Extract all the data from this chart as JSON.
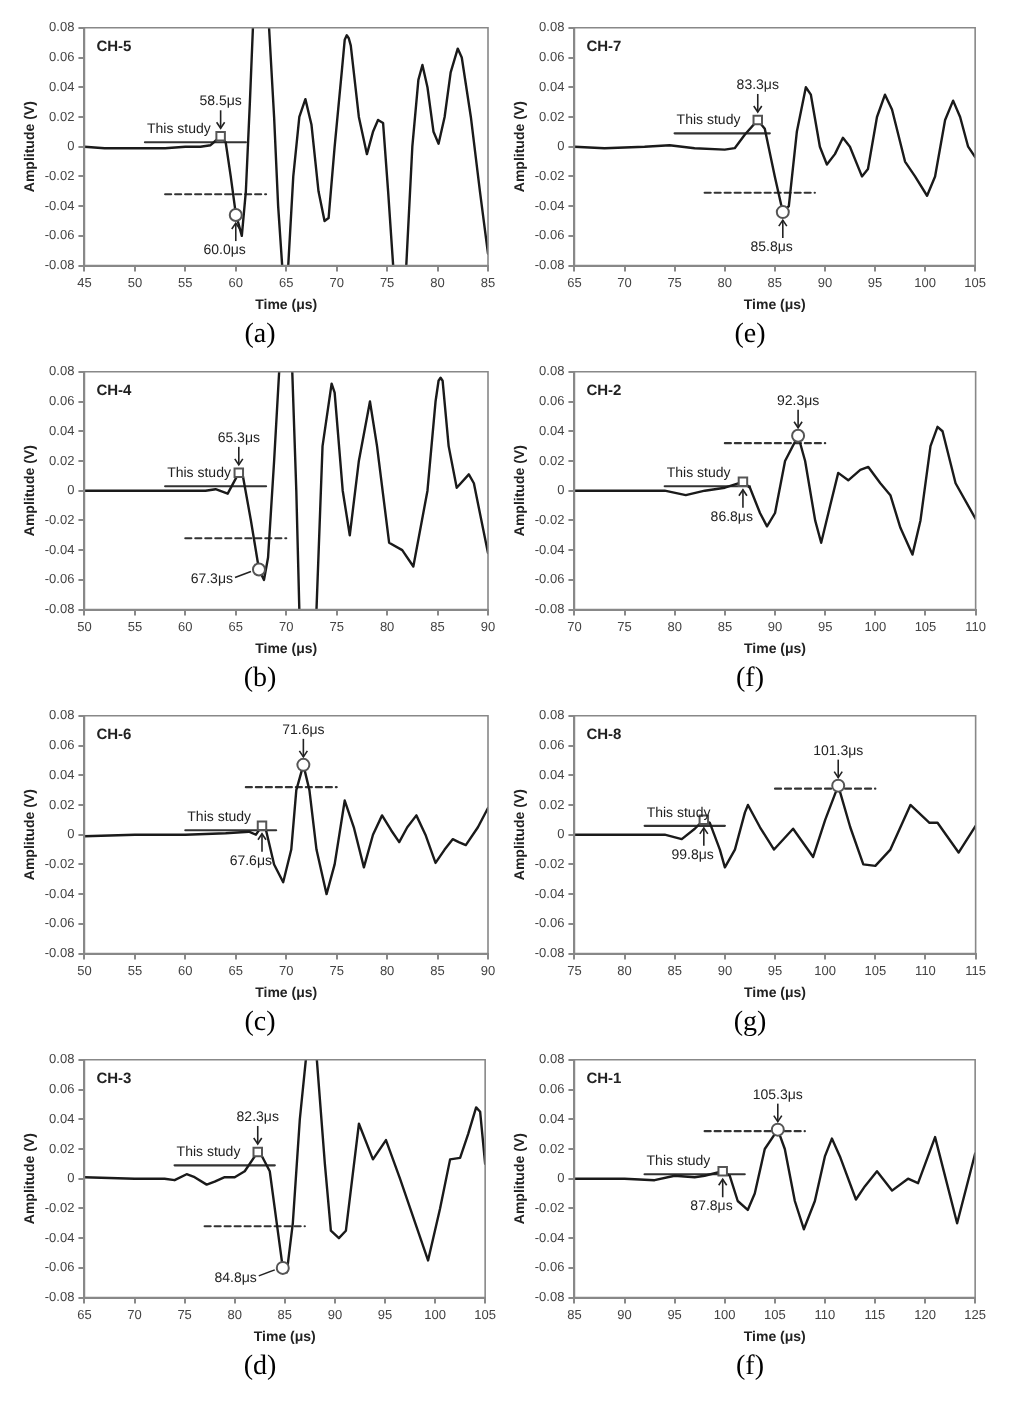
{
  "chart_data": [
    {
      "type": "line",
      "title": "CH-5",
      "xlabel": "Time (μs)",
      "ylabel": "Amplitude (V)",
      "xlim": [
        45,
        85
      ],
      "xticks": [
        45,
        50,
        55,
        60,
        65,
        70,
        75,
        80,
        85
      ],
      "ylim": [
        -0.08,
        0.08
      ],
      "yticks": [
        -0.08,
        -0.06,
        -0.04,
        -0.02,
        0,
        0.02,
        0.04,
        0.06,
        0.08
      ],
      "series": [
        {
          "color": "#1a1a1a",
          "x": [
            45,
            47,
            50,
            53,
            55,
            56.5,
            57.5,
            58,
            58.5,
            59,
            59.5,
            60,
            60.6,
            61,
            61.4,
            61.7,
            62.5,
            63.3,
            63.8,
            64.2,
            64.6,
            64.9,
            65.2,
            65.7,
            66.3,
            66.9,
            67.5,
            68.2,
            68.8,
            69.2,
            69.8,
            70.5,
            70.8,
            71,
            71.2,
            71.4,
            72.2,
            73,
            73.6,
            74.1,
            74.6,
            75.1,
            75.6,
            76.2,
            76.9,
            77.5,
            78.1,
            78.5,
            79,
            79.6,
            80.1,
            80.7,
            81.3,
            82,
            82.4,
            83.3,
            84.2,
            85
          ],
          "values": [
            0,
            -0.001,
            -0.001,
            -0.001,
            0,
            0,
            0.001,
            0.004,
            0.007,
            0.003,
            -0.02,
            -0.045,
            -0.06,
            -0.03,
            0.03,
            0.08,
            null,
            0.08,
            0.02,
            -0.04,
            -0.08,
            null,
            -0.08,
            -0.02,
            0.02,
            0.032,
            0.015,
            -0.03,
            -0.05,
            -0.048,
            0,
            0.05,
            0.072,
            0.075,
            0.073,
            0.068,
            0.02,
            -0.005,
            0.01,
            0.018,
            0.016,
            -0.03,
            -0.08,
            null,
            -0.08,
            0,
            0.045,
            0.055,
            0.04,
            0.01,
            0.002,
            0.02,
            0.05,
            0.066,
            0.06,
            0.02,
            -0.03,
            -0.072
          ]
        },
        {
          "name": "This study",
          "color": "#333333",
          "line_style": "solid",
          "x": [
            51,
            61
          ],
          "values": [
            0.003,
            0.003
          ]
        },
        {
          "color": "#333333",
          "line_style": "dashed",
          "x": [
            53,
            63
          ],
          "values": [
            -0.032,
            -0.032
          ]
        },
        {
          "type": "scatter",
          "marker": "square",
          "color": "#555555",
          "x": [
            58.5
          ],
          "values": [
            0.007
          ]
        },
        {
          "type": "scatter",
          "marker": "circle",
          "color": "#555555",
          "x": [
            60
          ],
          "values": [
            -0.046
          ]
        }
      ],
      "annotations": [
        {
          "text": "58.5μs",
          "x": 58.5,
          "y": 0.007
        },
        {
          "text": "60.0μs",
          "x": 60,
          "y": -0.046
        },
        "(a)"
      ]
    },
    {
      "type": "line",
      "title": "CH-7",
      "xlabel": "Time (μs)",
      "ylabel": "Amplitude (V)",
      "xlim": [
        65,
        105
      ],
      "xticks": [
        65,
        70,
        75,
        80,
        85,
        90,
        95,
        100,
        105
      ],
      "ylim": [
        -0.08,
        0.08
      ],
      "yticks": [
        -0.08,
        -0.06,
        -0.04,
        -0.02,
        0,
        0.02,
        0.04,
        0.06,
        0.08
      ],
      "series": [
        {
          "color": "#1a1a1a",
          "x": [
            65,
            68,
            72,
            74.5,
            77,
            80,
            81,
            82,
            83.3,
            84,
            85,
            85.8,
            86.4,
            87.2,
            88.1,
            88.6,
            89.5,
            90.2,
            91,
            91.8,
            92.5,
            93.7,
            94.3,
            95.2,
            96,
            96.7,
            98,
            99,
            100.2,
            101,
            102,
            102.8,
            103.5,
            104.3,
            105
          ],
          "values": [
            0,
            -0.001,
            0,
            0.001,
            -0.001,
            -0.002,
            -0.001,
            0.008,
            0.018,
            0.012,
            -0.02,
            -0.044,
            -0.04,
            0.01,
            0.04,
            0.035,
            0,
            -0.012,
            -0.005,
            0.006,
            0,
            -0.02,
            -0.015,
            0.02,
            0.035,
            0.025,
            -0.01,
            -0.02,
            -0.033,
            -0.02,
            0.018,
            0.031,
            0.02,
            0,
            -0.007
          ]
        },
        {
          "name": "This study",
          "color": "#333333",
          "line_style": "solid",
          "x": [
            75,
            84.5
          ],
          "values": [
            0.009,
            0.009
          ]
        },
        {
          "color": "#333333",
          "line_style": "dashed",
          "x": [
            78,
            89
          ],
          "values": [
            -0.031,
            -0.031
          ]
        },
        {
          "type": "scatter",
          "marker": "square",
          "color": "#555555",
          "x": [
            83.3
          ],
          "values": [
            0.018
          ]
        },
        {
          "type": "scatter",
          "marker": "circle",
          "color": "#555555",
          "x": [
            85.8
          ],
          "values": [
            -0.044
          ]
        }
      ],
      "annotations": [
        {
          "text": "83.3μs",
          "x": 83.3,
          "y": 0.018
        },
        {
          "text": "85.8μs",
          "x": 85.8,
          "y": -0.044
        },
        "(e)"
      ]
    },
    {
      "type": "line",
      "title": "CH-4",
      "xlabel": "Time (μs)",
      "ylabel": "Amplitude (V)",
      "xlim": [
        50,
        90
      ],
      "xticks": [
        50,
        55,
        60,
        65,
        70,
        75,
        80,
        85,
        90
      ],
      "ylim": [
        -0.08,
        0.08
      ],
      "yticks": [
        -0.08,
        -0.06,
        -0.04,
        -0.02,
        0,
        0.02,
        0.04,
        0.06,
        0.08
      ],
      "series": [
        {
          "color": "#1a1a1a",
          "x": [
            50,
            55,
            60,
            62,
            63,
            64.2,
            65.3,
            65.7,
            66.5,
            67.3,
            67.8,
            68.2,
            68.8,
            69.3,
            70,
            70.6,
            71,
            71.3,
            72.2,
            73,
            73.6,
            74.5,
            74.8,
            75.6,
            76.3,
            77.2,
            78.3,
            79,
            80.2,
            81.5,
            82.6,
            84,
            84.8,
            85.1,
            85.3,
            85.5,
            86.1,
            86.9,
            88.1,
            88.6,
            90
          ],
          "values": [
            0,
            0,
            0,
            0,
            0.001,
            -0.002,
            0.012,
            0.01,
            -0.02,
            -0.053,
            -0.06,
            -0.045,
            0.02,
            0.08,
            null,
            0.08,
            0,
            -0.08,
            null,
            -0.08,
            0.03,
            0.072,
            0.066,
            0,
            -0.03,
            0.02,
            0.06,
            0.03,
            -0.035,
            -0.04,
            -0.051,
            0,
            0.06,
            0.074,
            0.076,
            0.074,
            0.03,
            0.002,
            0.011,
            0.005,
            -0.042
          ]
        },
        {
          "name": "This study",
          "color": "#333333",
          "line_style": "solid",
          "x": [
            58,
            68
          ],
          "values": [
            0.003,
            0.003
          ]
        },
        {
          "color": "#333333",
          "line_style": "dashed",
          "x": [
            60,
            70
          ],
          "values": [
            -0.032,
            -0.032
          ]
        },
        {
          "type": "scatter",
          "marker": "square",
          "color": "#555555",
          "x": [
            65.3
          ],
          "values": [
            0.012
          ]
        },
        {
          "type": "scatter",
          "marker": "circle",
          "color": "#555555",
          "x": [
            67.3
          ],
          "values": [
            -0.053
          ]
        }
      ],
      "annotations": [
        {
          "text": "65.3μs",
          "x": 65.3,
          "y": 0.012
        },
        {
          "text": "67.3μs",
          "x": 67.3,
          "y": -0.053
        },
        "(b)"
      ]
    },
    {
      "type": "line",
      "title": "CH-2",
      "xlabel": "Time (μs)",
      "ylabel": "Amplitude (V)",
      "xlim": [
        70,
        110
      ],
      "xticks": [
        70,
        75,
        80,
        85,
        90,
        95,
        100,
        105,
        110
      ],
      "ylim": [
        -0.08,
        0.08
      ],
      "yticks": [
        -0.08,
        -0.06,
        -0.04,
        -0.02,
        0,
        0.02,
        0.04,
        0.06,
        0.08
      ],
      "series": [
        {
          "color": "#1a1a1a",
          "x": [
            70,
            75,
            79,
            81.1,
            83,
            85,
            86.8,
            87.5,
            88.5,
            89.2,
            90,
            91,
            92.3,
            93,
            94,
            94.6,
            95.5,
            96.3,
            97.3,
            98.5,
            99.3,
            100.5,
            101.5,
            102.5,
            103.7,
            104.5,
            105.5,
            106.2,
            106.7,
            108,
            110
          ],
          "values": [
            0,
            0,
            0,
            -0.003,
            0,
            0.002,
            0.006,
            0.002,
            -0.015,
            -0.024,
            -0.015,
            0.02,
            0.037,
            0.02,
            -0.02,
            -0.035,
            -0.01,
            0.012,
            0.007,
            0.014,
            0.016,
            0.005,
            -0.003,
            -0.025,
            -0.043,
            -0.02,
            0.03,
            0.043,
            0.04,
            0.005,
            -0.019
          ]
        },
        {
          "name": "This study",
          "color": "#333333",
          "line_style": "solid",
          "x": [
            79,
            87.5
          ],
          "values": [
            0.003,
            0.003
          ]
        },
        {
          "color": "#333333",
          "line_style": "dashed",
          "x": [
            85,
            95
          ],
          "values": [
            0.032,
            0.032
          ]
        },
        {
          "type": "scatter",
          "marker": "square",
          "color": "#555555",
          "x": [
            86.8
          ],
          "values": [
            0.006
          ]
        },
        {
          "type": "scatter",
          "marker": "circle",
          "color": "#555555",
          "x": [
            92.3
          ],
          "values": [
            0.037
          ]
        }
      ],
      "annotations": [
        {
          "text": "92.3μs",
          "x": 92.3,
          "y": 0.037
        },
        {
          "text": "86.8μs",
          "x": 86.8,
          "y": 0.006
        },
        "(f)"
      ]
    },
    {
      "type": "line",
      "title": "CH-6",
      "xlabel": "Time (μs)",
      "ylabel": "Amplitude (V)",
      "xlim": [
        50,
        90
      ],
      "xticks": [
        50,
        55,
        60,
        65,
        70,
        75,
        80,
        85,
        90
      ],
      "ylim": [
        -0.08,
        0.08
      ],
      "yticks": [
        -0.08,
        -0.06,
        -0.04,
        -0.02,
        0,
        0.02,
        0.04,
        0.06,
        0.08
      ],
      "series": [
        {
          "color": "#1a1a1a",
          "x": [
            50,
            55,
            60,
            64,
            66.3,
            67,
            67.6,
            68,
            68.8,
            69.7,
            70.5,
            71,
            71.7,
            72.3,
            73,
            74,
            74.8,
            75.8,
            76.7,
            77.7,
            78.6,
            79.5,
            80.4,
            81.2,
            82,
            82.9,
            83.8,
            84.8,
            85.7,
            86.5,
            87.1,
            87.8,
            89,
            90
          ],
          "values": [
            -0.001,
            0,
            0,
            0.001,
            0.002,
            0,
            0.006,
            0.003,
            -0.02,
            -0.032,
            -0.01,
            0.03,
            0.047,
            0.03,
            -0.01,
            -0.04,
            -0.02,
            0.023,
            0.005,
            -0.022,
            0,
            0.013,
            0.003,
            -0.005,
            0.005,
            0.013,
            0,
            -0.019,
            -0.01,
            -0.003,
            -0.005,
            -0.007,
            0.005,
            0.018
          ]
        },
        {
          "name": "This study",
          "color": "#333333",
          "line_style": "solid",
          "x": [
            60,
            69
          ],
          "values": [
            0.003,
            0.003
          ]
        },
        {
          "color": "#333333",
          "line_style": "dashed",
          "x": [
            66,
            75
          ],
          "values": [
            0.032,
            0.032
          ]
        },
        {
          "type": "scatter",
          "marker": "square",
          "color": "#555555",
          "x": [
            67.6
          ],
          "values": [
            0.006
          ]
        },
        {
          "type": "scatter",
          "marker": "circle",
          "color": "#555555",
          "x": [
            71.7
          ],
          "values": [
            0.047
          ]
        }
      ],
      "annotations": [
        {
          "text": "71.6μs",
          "x": 71.7,
          "y": 0.047
        },
        {
          "text": "67.6μs",
          "x": 67.6,
          "y": 0.006
        },
        "(c)"
      ]
    },
    {
      "type": "line",
      "title": "CH-8",
      "xlabel": "Time (μs)",
      "ylabel": "Amplitude (V)",
      "xlim": [
        75,
        115
      ],
      "xticks": [
        75,
        80,
        85,
        90,
        95,
        100,
        105,
        110,
        115
      ],
      "ylim": [
        -0.08,
        0.08
      ],
      "yticks": [
        -0.08,
        -0.06,
        -0.04,
        -0.02,
        0,
        0.02,
        0.04,
        0.06,
        0.08
      ],
      "series": [
        {
          "color": "#1a1a1a",
          "x": [
            75,
            80,
            84,
            85.7,
            87,
            87.9,
            88.5,
            89.5,
            90,
            91,
            92,
            92.3,
            93.5,
            94.9,
            96.8,
            98.8,
            100,
            101.3,
            102.5,
            103.8,
            105,
            106.5,
            108.5,
            110.4,
            111.2,
            113.3,
            115
          ],
          "values": [
            0,
            0,
            0,
            -0.003,
            0.004,
            0.01,
            0.008,
            -0.01,
            -0.022,
            -0.01,
            0.015,
            0.02,
            0.005,
            -0.01,
            0.004,
            -0.015,
            0.01,
            0.033,
            0.005,
            -0.02,
            -0.021,
            -0.01,
            0.02,
            0.008,
            0.008,
            -0.012,
            0.006
          ]
        },
        {
          "name": "This study",
          "color": "#333333",
          "line_style": "solid",
          "x": [
            82,
            90
          ],
          "values": [
            0.006,
            0.006
          ]
        },
        {
          "color": "#333333",
          "line_style": "dashed",
          "x": [
            95,
            105
          ],
          "values": [
            0.031,
            0.031
          ]
        },
        {
          "type": "scatter",
          "marker": "square",
          "color": "#555555",
          "x": [
            87.9
          ],
          "values": [
            0.01
          ]
        },
        {
          "type": "scatter",
          "marker": "circle",
          "color": "#555555",
          "x": [
            101.3
          ],
          "values": [
            0.033
          ]
        }
      ],
      "annotations": [
        {
          "text": "101.3μs",
          "x": 101.3,
          "y": 0.033
        },
        {
          "text": "99.8μs",
          "x": 87.9,
          "y": 0.01
        },
        "(g)"
      ]
    },
    {
      "type": "line",
      "title": "CH-3",
      "xlabel": "Time (μs)",
      "ylabel": "Amplitude (V)",
      "xlim": [
        65,
        105
      ],
      "xticks": [
        65,
        70,
        75,
        80,
        85,
        90,
        95,
        100,
        105
      ],
      "ylim": [
        -0.08,
        0.08
      ],
      "yticks": [
        -0.08,
        -0.06,
        -0.04,
        -0.02,
        0,
        0.02,
        0.04,
        0.06,
        0.08
      ],
      "series": [
        {
          "color": "#1a1a1a",
          "x": [
            65,
            70,
            73,
            74,
            75.2,
            76,
            77.2,
            78,
            79,
            80,
            81,
            82,
            82.5,
            83.5,
            84.2,
            84.8,
            85.2,
            85.8,
            86.5,
            87.1,
            87.6,
            88.2,
            89,
            89.6,
            90.4,
            91.1,
            92.4,
            93.8,
            95.1,
            96.5,
            99.3,
            100.5,
            101.5,
            102.5,
            103.3,
            104.1,
            104.5,
            105
          ],
          "values": [
            0.001,
            0,
            0,
            -0.001,
            0.003,
            0.001,
            -0.004,
            -0.002,
            0.001,
            0.001,
            0.005,
            0.015,
            0.018,
            0.005,
            -0.03,
            -0.06,
            -0.063,
            -0.03,
            0.04,
            0.08,
            null,
            0.08,
            0.01,
            -0.035,
            -0.04,
            -0.035,
            0.037,
            0.013,
            0.026,
            0,
            -0.055,
            -0.02,
            0.013,
            0.014,
            0.03,
            0.048,
            0.045,
            0.01
          ]
        },
        {
          "name": "This study",
          "color": "#333333",
          "line_style": "solid",
          "x": [
            74,
            84
          ],
          "values": [
            0.009,
            0.009
          ]
        },
        {
          "color": "#333333",
          "line_style": "dashed",
          "x": [
            77,
            87
          ],
          "values": [
            -0.032,
            -0.032
          ]
        },
        {
          "type": "scatter",
          "marker": "square",
          "color": "#555555",
          "x": [
            82.3
          ],
          "values": [
            0.018
          ]
        },
        {
          "type": "scatter",
          "marker": "circle",
          "color": "#555555",
          "x": [
            84.8
          ],
          "values": [
            -0.06
          ]
        }
      ],
      "annotations": [
        {
          "text": "82.3μs",
          "x": 82.3,
          "y": 0.018
        },
        {
          "text": "84.8μs",
          "x": 84.8,
          "y": -0.06
        },
        "(d)"
      ]
    },
    {
      "type": "line",
      "title": "CH-1",
      "xlabel": "Time (μs)",
      "ylabel": "Amplitude (V)",
      "xlim": [
        85,
        125
      ],
      "xticks": [
        85,
        90,
        95,
        100,
        105,
        110,
        115,
        120,
        125
      ],
      "ylim": [
        -0.08,
        0.08
      ],
      "yticks": [
        -0.08,
        -0.06,
        -0.04,
        -0.02,
        0,
        0.02,
        0.04,
        0.06,
        0.08
      ],
      "series": [
        {
          "color": "#1a1a1a",
          "x": [
            85,
            90,
            93,
            95,
            97,
            98,
            99.8,
            100.5,
            101.3,
            102.3,
            103,
            104,
            105.3,
            106,
            107,
            107.9,
            109,
            110,
            110.7,
            111.5,
            113.1,
            114,
            115.2,
            116.7,
            118.3,
            119.3,
            121,
            123.2,
            125
          ],
          "values": [
            0,
            0,
            -0.001,
            0.002,
            0.001,
            0.002,
            0.005,
            0.002,
            -0.015,
            -0.021,
            -0.01,
            0.02,
            0.033,
            0.02,
            -0.015,
            -0.034,
            -0.015,
            0.015,
            0.027,
            0.015,
            -0.014,
            -0.005,
            0.005,
            -0.008,
            0,
            -0.003,
            0.028,
            -0.03,
            0.017
          ]
        },
        {
          "name": "This study",
          "color": "#333333",
          "line_style": "solid",
          "x": [
            92,
            102
          ],
          "values": [
            0.003,
            0.003
          ]
        },
        {
          "color": "#333333",
          "line_style": "dashed",
          "x": [
            98,
            108
          ],
          "values": [
            0.032,
            0.032
          ]
        },
        {
          "type": "scatter",
          "marker": "square",
          "color": "#555555",
          "x": [
            99.8
          ],
          "values": [
            0.005
          ]
        },
        {
          "type": "scatter",
          "marker": "circle",
          "color": "#555555",
          "x": [
            105.3
          ],
          "values": [
            0.033
          ]
        }
      ],
      "annotations": [
        {
          "text": "105.3μs",
          "x": 105.3,
          "y": 0.033
        },
        {
          "text": "87.8μs",
          "x": 99.8,
          "y": 0.005
        },
        "(f)"
      ]
    }
  ]
}
